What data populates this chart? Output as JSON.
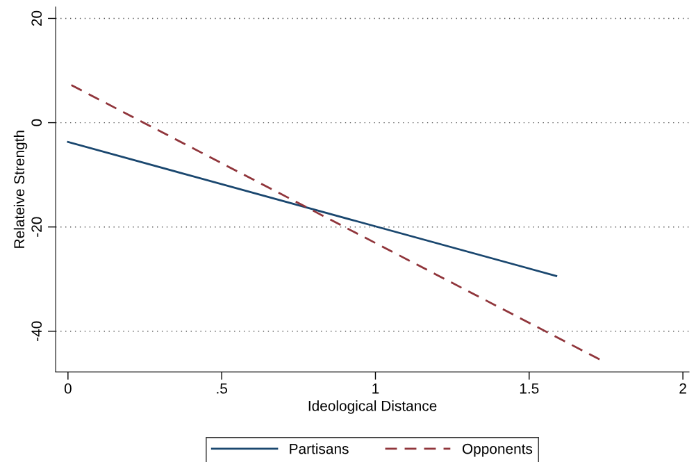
{
  "chart_data": {
    "type": "line",
    "xlabel": "Ideological Distance",
    "ylabel": "Relateive Strength",
    "xlim": [
      -0.04,
      2.02
    ],
    "xticks": [
      0,
      {
        "value": 0.5,
        "label": ".5"
      },
      1,
      1.5,
      2
    ],
    "ylim": [
      -47.8,
      22.2
    ],
    "yticks": [
      -40,
      -20,
      0,
      20
    ],
    "grid": "y",
    "legend": "bottom",
    "series": [
      {
        "name": "Partisans",
        "color": "#1a476f",
        "line_style": "solid",
        "x": [
          0,
          1.588
        ],
        "values": [
          -3.7,
          -29.4
        ]
      },
      {
        "name": "Opponents",
        "color": "#90353b",
        "line_style": "dashed",
        "x": [
          0.011,
          1.729
        ],
        "values": [
          7.2,
          -45.4
        ]
      }
    ]
  }
}
